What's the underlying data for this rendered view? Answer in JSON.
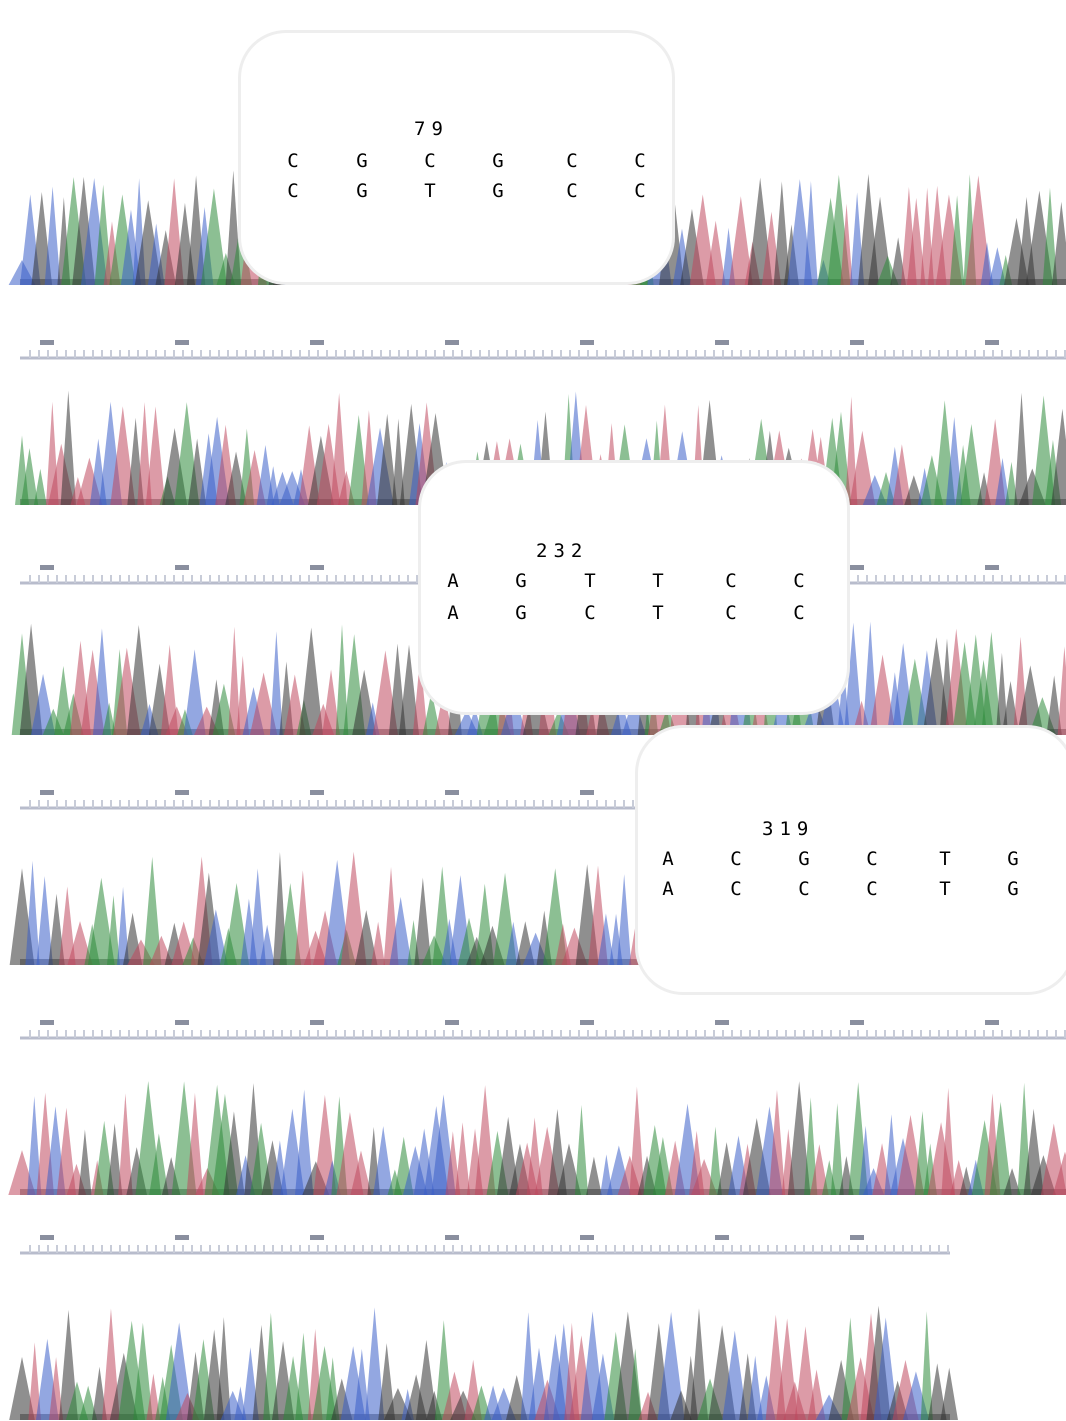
{
  "callouts": [
    {
      "position": "79",
      "reference": [
        "C",
        "G",
        "C",
        "G",
        "C",
        "C"
      ],
      "sample": [
        "C",
        "G",
        "T",
        "G",
        "C",
        "C"
      ]
    },
    {
      "position": "232",
      "reference": [
        "A",
        "G",
        "T",
        "T",
        "C",
        "C"
      ],
      "sample": [
        "A",
        "G",
        "C",
        "T",
        "C",
        "C"
      ]
    },
    {
      "position": "319",
      "reference": [
        "A",
        "C",
        "G",
        "C",
        "T",
        "G"
      ],
      "sample": [
        "A",
        "C",
        "C",
        "C",
        "T",
        "G"
      ]
    }
  ]
}
